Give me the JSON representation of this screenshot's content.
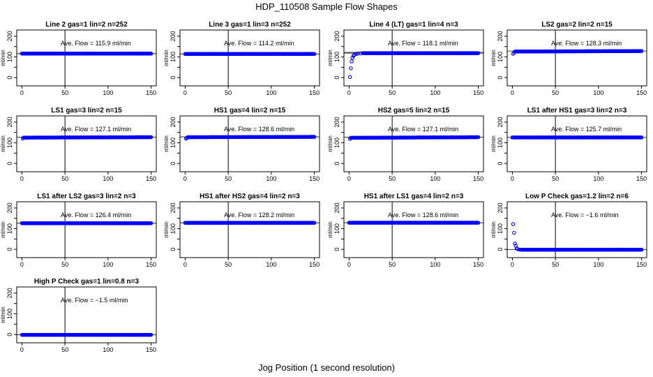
{
  "page": {
    "title": "HDP_110508  Sample Flow Shapes",
    "xlabel": "Jog Position (1 second resolution)"
  },
  "chart_data": [
    {
      "type": "scatter",
      "title": "Line 2 gas=1 lin=2 n=252",
      "ylabel": "ml/min",
      "xlim": [
        0,
        150
      ],
      "ylim": [
        0,
        200
      ],
      "xticks": [
        0,
        50,
        100,
        150
      ],
      "yticks": [
        0,
        100,
        200
      ],
      "vline": 50,
      "hlines": [
        115.9
      ],
      "annotation": "Ave. Flow =  115.9  ml/min",
      "marker_color": "#0000ff",
      "shape": "flat",
      "x": [
        0,
        150
      ],
      "y": [
        115.9,
        115.9
      ]
    },
    {
      "type": "scatter",
      "title": "Line 3 gas=1 lin=3 n=252",
      "ylabel": "ml/min",
      "xlim": [
        0,
        150
      ],
      "ylim": [
        0,
        200
      ],
      "xticks": [
        0,
        50,
        100,
        150
      ],
      "yticks": [
        0,
        100,
        200
      ],
      "vline": 50,
      "hlines": [
        114.2
      ],
      "annotation": "Ave. Flow =  114.2  ml/min",
      "marker_color": "#0000ff",
      "shape": "flat",
      "x": [
        0,
        150
      ],
      "y": [
        114.2,
        114.2
      ]
    },
    {
      "type": "scatter",
      "title": "Line 4 (LT) gas=1 lin=4 n=3",
      "ylabel": "ml/min",
      "xlim": [
        0,
        150
      ],
      "ylim": [
        0,
        200
      ],
      "xticks": [
        0,
        50,
        100,
        150
      ],
      "yticks": [
        0,
        100,
        200
      ],
      "vline": 50,
      "hlines": [
        118.1,
        122
      ],
      "annotation": "Ave. Flow =  118.1  ml/min",
      "marker_color": "#0000ff",
      "shape": "rise",
      "x": [
        1,
        2,
        3,
        4,
        5,
        6,
        8,
        10,
        13,
        16,
        20,
        30,
        150
      ],
      "y": [
        3,
        45,
        78,
        95,
        105,
        110,
        114,
        116,
        117,
        118,
        118,
        118,
        118
      ]
    },
    {
      "type": "scatter",
      "title": "LS2 gas=2 lin=2 n=15",
      "ylabel": "ml/min",
      "xlim": [
        0,
        150
      ],
      "ylim": [
        0,
        200
      ],
      "xticks": [
        0,
        50,
        100,
        150
      ],
      "yticks": [
        0,
        100,
        200
      ],
      "vline": 50,
      "hlines": [
        128.3
      ],
      "annotation": "Ave. Flow =  128.3  ml/min",
      "marker_color": "#0000ff",
      "shape": "step",
      "x": [
        1,
        2,
        3,
        150
      ],
      "y": [
        115,
        121,
        126,
        128.3
      ]
    },
    {
      "type": "scatter",
      "title": "LS1 gas=3 lin=2 n=15",
      "ylabel": "ml/min",
      "xlim": [
        0,
        150
      ],
      "ylim": [
        0,
        200
      ],
      "xticks": [
        0,
        50,
        100,
        150
      ],
      "yticks": [
        0,
        100,
        200
      ],
      "vline": 50,
      "hlines": [
        127.1
      ],
      "annotation": "Ave. Flow =  127.1  ml/min",
      "marker_color": "#0000ff",
      "shape": "step",
      "x": [
        1,
        2,
        150
      ],
      "y": [
        121,
        125,
        127.1
      ]
    },
    {
      "type": "scatter",
      "title": "HS1 gas=4 lin=2 n=15",
      "ylabel": "ml/min",
      "xlim": [
        0,
        150
      ],
      "ylim": [
        0,
        200
      ],
      "xticks": [
        0,
        50,
        100,
        150
      ],
      "yticks": [
        0,
        100,
        200
      ],
      "vline": 50,
      "hlines": [
        128.6
      ],
      "annotation": "Ave. Flow =  128.6  ml/min",
      "marker_color": "#0000ff",
      "shape": "step",
      "x": [
        1,
        2,
        3,
        150
      ],
      "y": [
        120,
        124,
        127,
        128.6
      ]
    },
    {
      "type": "scatter",
      "title": "HS2 gas=5 lin=2 n=15",
      "ylabel": "ml/min",
      "xlim": [
        0,
        150
      ],
      "ylim": [
        0,
        200
      ],
      "xticks": [
        0,
        50,
        100,
        150
      ],
      "yticks": [
        0,
        100,
        200
      ],
      "vline": 50,
      "hlines": [
        127.1
      ],
      "annotation": "Ave. Flow =  127.1  ml/min",
      "marker_color": "#0000ff",
      "shape": "step",
      "x": [
        1,
        2,
        150
      ],
      "y": [
        119,
        124,
        127.1
      ]
    },
    {
      "type": "scatter",
      "title": "LS1 after HS1 gas=3 lin=2 n=3",
      "ylabel": "ml/min",
      "xlim": [
        0,
        150
      ],
      "ylim": [
        0,
        200
      ],
      "xticks": [
        0,
        50,
        100,
        150
      ],
      "yticks": [
        0,
        100,
        200
      ],
      "vline": 50,
      "hlines": [
        125.7
      ],
      "annotation": "Ave. Flow =  125.7  ml/min",
      "marker_color": "#0000ff",
      "shape": "flat",
      "x": [
        0,
        150
      ],
      "y": [
        125.7,
        125.7
      ]
    },
    {
      "type": "scatter",
      "title": "LS1 after LS2 gas=3 lin=2 n=3",
      "ylabel": "ml/min",
      "xlim": [
        0,
        150
      ],
      "ylim": [
        0,
        200
      ],
      "xticks": [
        0,
        50,
        100,
        150
      ],
      "yticks": [
        0,
        100,
        200
      ],
      "vline": 50,
      "hlines": [
        126.4
      ],
      "annotation": "Ave. Flow =  126.4  ml/min",
      "marker_color": "#0000ff",
      "shape": "flat",
      "x": [
        0,
        150
      ],
      "y": [
        126.4,
        126.4
      ]
    },
    {
      "type": "scatter",
      "title": "HS1 after HS2 gas=4 lin=2 n=3",
      "ylabel": "ml/min",
      "xlim": [
        0,
        150
      ],
      "ylim": [
        0,
        200
      ],
      "xticks": [
        0,
        50,
        100,
        150
      ],
      "yticks": [
        0,
        100,
        200
      ],
      "vline": 50,
      "hlines": [
        128.2
      ],
      "annotation": "Ave. Flow =  128.2  ml/min",
      "marker_color": "#0000ff",
      "shape": "flat",
      "x": [
        0,
        150
      ],
      "y": [
        128.2,
        128.2
      ]
    },
    {
      "type": "scatter",
      "title": "HS1 after LS1 gas=4 lin=2 n=3",
      "ylabel": "ml/min",
      "xlim": [
        0,
        150
      ],
      "ylim": [
        0,
        200
      ],
      "xticks": [
        0,
        50,
        100,
        150
      ],
      "yticks": [
        0,
        100,
        200
      ],
      "vline": 50,
      "hlines": [
        128.6
      ],
      "annotation": "Ave. Flow =  128.6  ml/min",
      "marker_color": "#0000ff",
      "shape": "flat",
      "x": [
        0,
        150
      ],
      "y": [
        128.6,
        128.6
      ]
    },
    {
      "type": "scatter",
      "title": "Low P Check gas=1.2 lin=2 n=6",
      "ylabel": "ml/min",
      "xlim": [
        0,
        150
      ],
      "ylim": [
        0,
        200
      ],
      "xticks": [
        0,
        50,
        100,
        150
      ],
      "yticks": [
        0,
        100,
        200
      ],
      "vline": 50,
      "hlines": [
        -1.6
      ],
      "annotation": "Ave. Flow =  −1.6  ml/min",
      "marker_color": "#0000ff",
      "shape": "decay",
      "x": [
        1,
        2,
        3,
        4,
        5,
        6,
        8,
        10,
        150
      ],
      "y": [
        122,
        80,
        28,
        18,
        5,
        1,
        -1,
        -1.6,
        -1.6
      ]
    },
    {
      "type": "scatter",
      "title": "High P Check gas=1 lin=0.8 n=3",
      "ylabel": "ml/min",
      "xlim": [
        0,
        150
      ],
      "ylim": [
        0,
        200
      ],
      "xticks": [
        0,
        50,
        100,
        150
      ],
      "yticks": [
        0,
        100,
        200
      ],
      "vline": 50,
      "hlines": [
        -1.5
      ],
      "annotation": "Ave. Flow =  −1.5  ml/min",
      "marker_color": "#0000ff",
      "shape": "flat",
      "x": [
        0,
        150
      ],
      "y": [
        -1.5,
        -1.5
      ]
    }
  ]
}
